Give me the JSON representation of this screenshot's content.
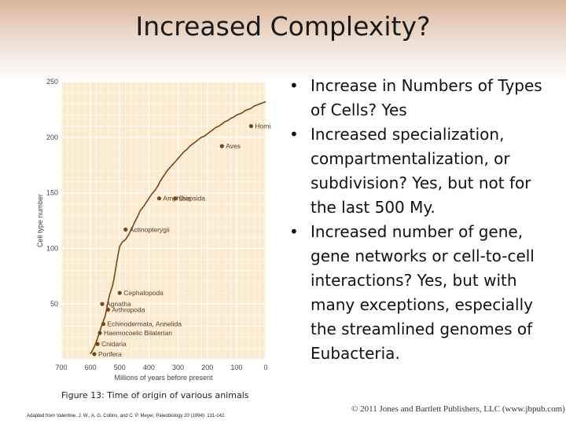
{
  "slide": {
    "title": "Increased Complexity?",
    "bullets": [
      "Increase in Numbers of Types of Cells?  Yes",
      "Increased specialization, compartmentalization, or subdivision?  Yes, but not for the last 500 My.",
      "Increased number of gene, gene networks or cell-to-cell interactions?  Yes, but with many exceptions, especially the streamlined genomes of Eubacteria."
    ],
    "bullet_glyph": "•",
    "caption": "Figure 13: Time of origin of various animals",
    "source": "Adapted from Valentine, J. W., A. G. Collins, and C. P. Meyer, Paleobiology 20 (1994): 131-142.",
    "copyright": "© 2011 Jones and Bartlett Publishers, LLC (www.jbpub.com)"
  },
  "colors": {
    "plot_bg": "#fbebd0",
    "grid": "#ffffff",
    "line": "#7a4516",
    "point": "#7a4516",
    "label": "#5a3a22",
    "axis_text": "#444444"
  },
  "chart_data": {
    "type": "line",
    "title": "",
    "xlabel": "Millions of years before present",
    "ylabel": "Cell type number",
    "xlim": [
      700,
      0
    ],
    "ylim": [
      0,
      250
    ],
    "x_ticks": [
      700,
      600,
      500,
      400,
      300,
      200,
      100,
      0
    ],
    "y_ticks": [
      50,
      100,
      150,
      200,
      250
    ],
    "grid": true,
    "series": [
      {
        "values": [
          [
            600,
            5
          ],
          [
            590,
            10
          ],
          [
            580,
            16
          ],
          [
            570,
            24
          ],
          [
            560,
            32
          ],
          [
            550,
            39
          ],
          [
            545,
            45
          ],
          [
            540,
            52
          ],
          [
            535,
            58
          ],
          [
            530,
            62
          ],
          [
            525,
            66
          ],
          [
            520,
            72
          ],
          [
            515,
            80
          ],
          [
            510,
            88
          ],
          [
            505,
            95
          ],
          [
            500,
            102
          ],
          [
            495,
            104
          ],
          [
            490,
            106
          ],
          [
            480,
            108
          ],
          [
            470,
            112
          ],
          [
            460,
            117
          ],
          [
            450,
            123
          ],
          [
            440,
            128
          ],
          [
            430,
            134
          ],
          [
            420,
            137
          ],
          [
            410,
            141
          ],
          [
            400,
            145
          ],
          [
            390,
            149
          ],
          [
            380,
            152
          ],
          [
            370,
            156
          ],
          [
            360,
            161
          ],
          [
            350,
            165
          ],
          [
            340,
            169
          ],
          [
            330,
            172
          ],
          [
            320,
            175
          ],
          [
            310,
            178
          ],
          [
            300,
            181
          ],
          [
            290,
            184
          ],
          [
            280,
            187
          ],
          [
            270,
            189
          ],
          [
            260,
            192
          ],
          [
            250,
            194
          ],
          [
            240,
            196
          ],
          [
            230,
            198
          ],
          [
            220,
            200
          ],
          [
            210,
            201
          ],
          [
            200,
            203
          ],
          [
            190,
            205
          ],
          [
            180,
            207
          ],
          [
            170,
            209
          ],
          [
            160,
            210
          ],
          [
            150,
            212
          ],
          [
            140,
            214
          ],
          [
            130,
            215
          ],
          [
            120,
            217
          ],
          [
            110,
            218
          ],
          [
            100,
            220
          ],
          [
            90,
            221
          ],
          [
            80,
            222
          ],
          [
            70,
            224
          ],
          [
            60,
            225
          ],
          [
            50,
            226
          ],
          [
            40,
            228
          ],
          [
            30,
            229
          ],
          [
            20,
            230
          ],
          [
            10,
            231
          ],
          [
            0,
            232
          ]
        ]
      }
    ],
    "annotations": [
      {
        "label": "Porifera",
        "x": 587,
        "y": 5
      },
      {
        "label": "Cnidaria",
        "x": 576,
        "y": 14
      },
      {
        "label": "Haemocoelic Bilaterian",
        "x": 568,
        "y": 24
      },
      {
        "label": "Echinodermata, Annelida",
        "x": 556,
        "y": 32
      },
      {
        "label": "Arthropoda",
        "x": 540,
        "y": 45
      },
      {
        "label": "Agnatha",
        "x": 560,
        "y": 50
      },
      {
        "label": "Cephalopoda",
        "x": 500,
        "y": 60
      },
      {
        "label": "Actinopterygii",
        "x": 480,
        "y": 117
      },
      {
        "label": "Amphibia",
        "x": 365,
        "y": 145
      },
      {
        "label": "Diapsida",
        "x": 310,
        "y": 145
      },
      {
        "label": "Aves",
        "x": 150,
        "y": 192
      },
      {
        "label": "Hominidae",
        "x": 50,
        "y": 210
      }
    ]
  }
}
